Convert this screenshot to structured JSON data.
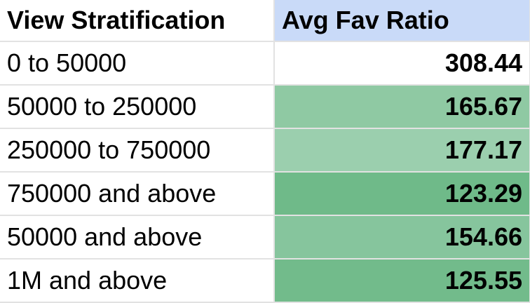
{
  "header": {
    "col1_label": "View Stratification",
    "col2_label": "Avg Fav Ratio"
  },
  "colors": {
    "header_col1_bg": "#ffffff",
    "header_col2_bg": "#c9daf8",
    "grid_line": "#e2e2e2"
  },
  "rows": [
    {
      "label": "0 to 50000",
      "value": "308.44",
      "fill": "#ffffff"
    },
    {
      "label": "50000 to 250000",
      "value": "165.67",
      "fill": "#8fc9a3"
    },
    {
      "label": "250000 to 750000",
      "value": "177.17",
      "fill": "#9bcfae"
    },
    {
      "label": "750000 and above",
      "value": "123.29",
      "fill": "#6fba89"
    },
    {
      "label": "50000 and above",
      "value": "154.66",
      "fill": "#86c59d"
    },
    {
      "label": "1M and above",
      "value": "125.55",
      "fill": "#72bb8b"
    }
  ]
}
